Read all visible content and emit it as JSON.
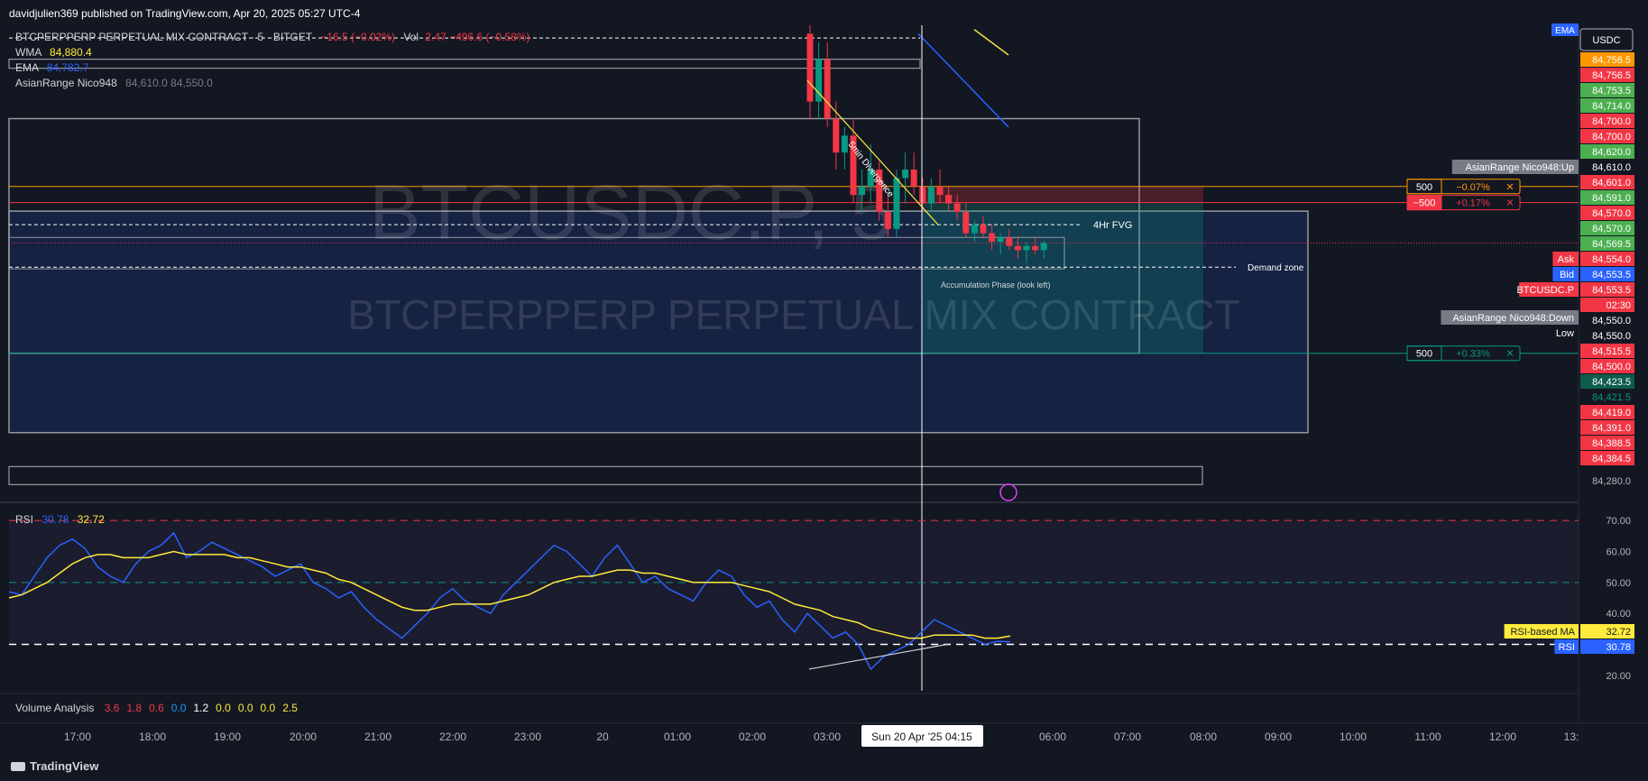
{
  "header": {
    "published": "davidjulien369 published on TradingView.com, Apr 20, 2025 05:27 UTC-4"
  },
  "legend": {
    "symbol": "BTCPERPPERP PERPETUAL MIX CONTRACT · 5 · BITGET",
    "change": "−16.5 (−0.02%)",
    "vol_label": "Vol",
    "vol_value": "2.47 −496.6 (−0.58%)",
    "wma_label": "WMA",
    "wma_value": "84,880.4",
    "ema_label": "EMA",
    "ema_value": "84,782.7",
    "asian_label": "AsianRange Nico948",
    "asian_values": "84,610.0 84,550.0",
    "rsi_label": "RSI",
    "rsi_value": "30.78",
    "rsi_ma_value": "32.72",
    "volume_label": "Volume Analysis",
    "volume_values": [
      {
        "v": "3.6",
        "c": "#f23645"
      },
      {
        "v": "1.8",
        "c": "#f23645"
      },
      {
        "v": "0.6",
        "c": "#f23645"
      },
      {
        "v": "0.0",
        "c": "#2196f3"
      },
      {
        "v": "1.2",
        "c": "#ffffff"
      },
      {
        "v": "0.0",
        "c": "#ffeb3b"
      },
      {
        "v": "0.0",
        "c": "#ffeb3b"
      },
      {
        "v": "0.0",
        "c": "#ffeb3b"
      },
      {
        "v": "2.5",
        "c": "#ffeb3b"
      }
    ]
  },
  "watermark": {
    "line1": "BTCUSDC.P, 5",
    "line2": "BTCPERPPERP PERPETUAL MIX CONTRACT"
  },
  "annotations": {
    "fvg": "4Hr FVG",
    "demand": "Demand zone",
    "accumulation": "Accumulation Phase (look left)",
    "divergence": "5min Divergence"
  },
  "currency": "USDC",
  "ema_tag": "EMA",
  "price_scale": [
    {
      "label": "84,756.5",
      "price": 84756.5,
      "bg": "#ff9800",
      "fg": "#ffffff"
    },
    {
      "label": "84,756.5",
      "price": 84756.5,
      "bg": "#f23645",
      "fg": "#ffffff"
    },
    {
      "label": "84,753.5",
      "price": 84753.5,
      "bg": "#4caf50",
      "fg": "#ffffff"
    },
    {
      "label": "84,714.0",
      "price": 84714.0,
      "bg": "#4caf50",
      "fg": "#ffffff"
    },
    {
      "label": "84,700.0",
      "price": 84700.0,
      "bg": "#f23645",
      "fg": "#ffffff"
    },
    {
      "label": "84,700.0",
      "price": 84700.0,
      "bg": "#f23645",
      "fg": "#ffffff"
    },
    {
      "label": "84,620.0",
      "price": 84620.0,
      "bg": "#4caf50",
      "fg": "#ffffff"
    },
    {
      "label": "84,610.0",
      "price": 84610.0,
      "bg": "#131722",
      "fg": "#ffffff"
    },
    {
      "label": "84,601.0",
      "price": 84601.0,
      "bg": "#f23645",
      "fg": "#ffffff"
    },
    {
      "label": "84,591.0",
      "price": 84591.0,
      "bg": "#4caf50",
      "fg": "#ffffff"
    },
    {
      "label": "84,570.0",
      "price": 84570.0,
      "bg": "#f23645",
      "fg": "#ffffff"
    },
    {
      "label": "84,570.0",
      "price": 84570.0,
      "bg": "#4caf50",
      "fg": "#ffffff"
    },
    {
      "label": "84,569.5",
      "price": 84569.5,
      "bg": "#4caf50",
      "fg": "#ffffff"
    },
    {
      "label": "84,554.0",
      "price": 84554.0,
      "bg": "#f23645",
      "fg": "#ffffff"
    },
    {
      "label": "84,553.5",
      "price": 84553.5,
      "bg": "#2962ff",
      "fg": "#ffffff"
    },
    {
      "label": "84,553.5",
      "price": 84553.5,
      "bg": "#f23645",
      "fg": "#ffffff"
    },
    {
      "label": "02:30",
      "price": 84553.5,
      "bg": "#f23645",
      "fg": "#ffffff"
    },
    {
      "label": "84,550.0",
      "price": 84550.0,
      "bg": "#131722",
      "fg": "#ffffff"
    },
    {
      "label": "84,550.0",
      "price": 84550.0,
      "bg": "#131722",
      "fg": "#ffffff"
    },
    {
      "label": "84,515.5",
      "price": 84515.5,
      "bg": "#f23645",
      "fg": "#ffffff"
    },
    {
      "label": "84,500.0",
      "price": 84500.0,
      "bg": "#f23645",
      "fg": "#ffffff"
    },
    {
      "label": "84,423.5",
      "price": 84423.5,
      "bg": "#0e5c4b",
      "fg": "#ffffff"
    },
    {
      "label": "84,421.5",
      "price": 84421.5,
      "bg": "#131722",
      "fg": "#089981"
    },
    {
      "label": "84,419.0",
      "price": 84419.0,
      "bg": "#f23645",
      "fg": "#ffffff"
    },
    {
      "label": "84,391.0",
      "price": 84391.0,
      "bg": "#f23645",
      "fg": "#ffffff"
    },
    {
      "label": "84,388.5",
      "price": 84388.5,
      "bg": "#f23645",
      "fg": "#ffffff"
    },
    {
      "label": "84,384.5",
      "price": 84384.5,
      "bg": "#f23645",
      "fg": "#ffffff"
    },
    {
      "label": "84,280.0",
      "price": 84280.0,
      "bg": "none",
      "fg": "#b2b5be"
    }
  ],
  "scale_side_tags": [
    {
      "label": "AsianRange Nico948:Up",
      "price": 84610.0,
      "bg": "#787b86"
    },
    {
      "label": "Ask",
      "price": 84554.0,
      "bg": "#f23645"
    },
    {
      "label": "Bid",
      "price": 84553.5,
      "bg": "#2962ff"
    },
    {
      "label": "BTCUSDC.P",
      "price": 84553.5,
      "bg": "#f23645"
    },
    {
      "label": "AsianRange Nico948:Down",
      "price": 84550.0,
      "bg": "#787b86"
    },
    {
      "label": "Low",
      "price": 84550.0,
      "bg": "#131722"
    }
  ],
  "position_tags": [
    {
      "qty": "500",
      "pct": "−0.07%",
      "price": 84620.0,
      "color": "#ff9800",
      "qty_bg": "none"
    },
    {
      "qty": "−500",
      "pct": "+0.17%",
      "price": 84601.0,
      "color": "#f23645",
      "qty_bg": "#f23645"
    },
    {
      "qty": "500",
      "pct": "+0.33%",
      "price": 84423.5,
      "color": "#089981",
      "qty_bg": "none"
    }
  ],
  "close_glyph": "✕",
  "rsi_scale": [
    "70.00",
    "60.00",
    "50.00",
    "40.00",
    "20.00"
  ],
  "rsi_tags": [
    {
      "label": "RSI-based MA",
      "value": "32.72",
      "bg": "#ffeb3b",
      "fg": "#131722"
    },
    {
      "label": "RSI",
      "value": "30.78",
      "bg": "#2962ff",
      "fg": "#ffffff"
    }
  ],
  "time_axis": [
    "17:00",
    "18:00",
    "19:00",
    "20:00",
    "21:00",
    "22:00",
    "23:00",
    "20",
    "01:00",
    "02:00",
    "03:00",
    "06:00",
    "07:00",
    "08:00",
    "09:00",
    "10:00",
    "11:00",
    "12:00",
    "13:"
  ],
  "crosshair_label": "Sun 20 Apr '25   04:15",
  "brand": "TradingView",
  "colors": {
    "up": "#089981",
    "down": "#f23645",
    "wma": "#ffeb3b",
    "ema": "#2962ff",
    "rsi": "#2962ff",
    "rsi_ma": "#ffeb3b"
  },
  "chart_data": {
    "type": "line",
    "price_ylim": [
      84250,
      84810
    ],
    "rsi_ylim": [
      15,
      75
    ],
    "rsi_levels": {
      "overbought": 70,
      "middle": 50,
      "oversold": 30
    },
    "candles": [
      {
        "t": "02:48",
        "o": 84800,
        "h": 84810,
        "l": 84700,
        "c": 84720
      },
      {
        "t": "02:51",
        "o": 84720,
        "h": 84790,
        "l": 84700,
        "c": 84770
      },
      {
        "t": "02:54",
        "o": 84770,
        "h": 84790,
        "l": 84690,
        "c": 84700
      },
      {
        "t": "02:57",
        "o": 84700,
        "h": 84720,
        "l": 84640,
        "c": 84660
      },
      {
        "t": "03:00",
        "o": 84660,
        "h": 84690,
        "l": 84640,
        "c": 84680
      },
      {
        "t": "03:03",
        "o": 84680,
        "h": 84700,
        "l": 84600,
        "c": 84610
      },
      {
        "t": "03:06",
        "o": 84610,
        "h": 84640,
        "l": 84590,
        "c": 84620
      },
      {
        "t": "03:09",
        "o": 84620,
        "h": 84670,
        "l": 84600,
        "c": 84640
      },
      {
        "t": "03:12",
        "o": 84640,
        "h": 84650,
        "l": 84580,
        "c": 84590
      },
      {
        "t": "03:15",
        "o": 84590,
        "h": 84610,
        "l": 84560,
        "c": 84570
      },
      {
        "t": "03:18",
        "o": 84570,
        "h": 84640,
        "l": 84560,
        "c": 84630
      },
      {
        "t": "03:21",
        "o": 84630,
        "h": 84660,
        "l": 84600,
        "c": 84640
      },
      {
        "t": "03:24",
        "o": 84640,
        "h": 84660,
        "l": 84610,
        "c": 84620
      },
      {
        "t": "03:27",
        "o": 84620,
        "h": 84630,
        "l": 84590,
        "c": 84600
      },
      {
        "t": "03:30",
        "o": 84600,
        "h": 84630,
        "l": 84590,
        "c": 84620
      },
      {
        "t": "03:33",
        "o": 84620,
        "h": 84640,
        "l": 84600,
        "c": 84610
      },
      {
        "t": "03:36",
        "o": 84610,
        "h": 84620,
        "l": 84590,
        "c": 84600
      },
      {
        "t": "03:39",
        "o": 84600,
        "h": 84610,
        "l": 84580,
        "c": 84590
      },
      {
        "t": "03:42",
        "o": 84590,
        "h": 84600,
        "l": 84560,
        "c": 84565
      },
      {
        "t": "03:45",
        "o": 84565,
        "h": 84580,
        "l": 84555,
        "c": 84575
      },
      {
        "t": "03:48",
        "o": 84575,
        "h": 84585,
        "l": 84560,
        "c": 84565
      },
      {
        "t": "03:51",
        "o": 84565,
        "h": 84575,
        "l": 84545,
        "c": 84555
      },
      {
        "t": "03:54",
        "o": 84555,
        "h": 84565,
        "l": 84540,
        "c": 84560
      },
      {
        "t": "03:57",
        "o": 84560,
        "h": 84570,
        "l": 84545,
        "c": 84550
      },
      {
        "t": "04:00",
        "o": 84550,
        "h": 84560,
        "l": 84535,
        "c": 84545
      },
      {
        "t": "04:03",
        "o": 84545,
        "h": 84555,
        "l": 84530,
        "c": 84550
      },
      {
        "t": "04:06",
        "o": 84550,
        "h": 84560,
        "l": 84540,
        "c": 84545
      },
      {
        "t": "04:09",
        "o": 84545,
        "h": 84556,
        "l": 84535,
        "c": 84553.5
      }
    ],
    "rsi": [
      47,
      46,
      52,
      58,
      62,
      64,
      61,
      55,
      52,
      50,
      56,
      60,
      62,
      66,
      58,
      60,
      63,
      61,
      59,
      57,
      55,
      52,
      54,
      56,
      50,
      48,
      45,
      47,
      42,
      38,
      35,
      32,
      36,
      40,
      45,
      48,
      44,
      42,
      40,
      46,
      50,
      54,
      58,
      62,
      60,
      56,
      52,
      58,
      62,
      56,
      50,
      52,
      48,
      46,
      44,
      50,
      54,
      52,
      46,
      42,
      44,
      38,
      34,
      40,
      36,
      32,
      34,
      30,
      22,
      26,
      28,
      30,
      34,
      38,
      36,
      34,
      32,
      30,
      31,
      30.78
    ],
    "rsi_ma": [
      45,
      46,
      48,
      50,
      53,
      56,
      58,
      59,
      59,
      58,
      58,
      58,
      59,
      60,
      59,
      59,
      59,
      59,
      58,
      58,
      57,
      56,
      55,
      55,
      54,
      53,
      51,
      50,
      48,
      46,
      44,
      42,
      41,
      41,
      42,
      43,
      43,
      43,
      43,
      44,
      45,
      46,
      48,
      50,
      51,
      52,
      52,
      53,
      54,
      54,
      53,
      53,
      52,
      51,
      50,
      50,
      50,
      50,
      49,
      48,
      47,
      45,
      43,
      42,
      41,
      39,
      38,
      37,
      35,
      34,
      33,
      32,
      32,
      33,
      33,
      33,
      33,
      32,
      32,
      32.72
    ]
  }
}
